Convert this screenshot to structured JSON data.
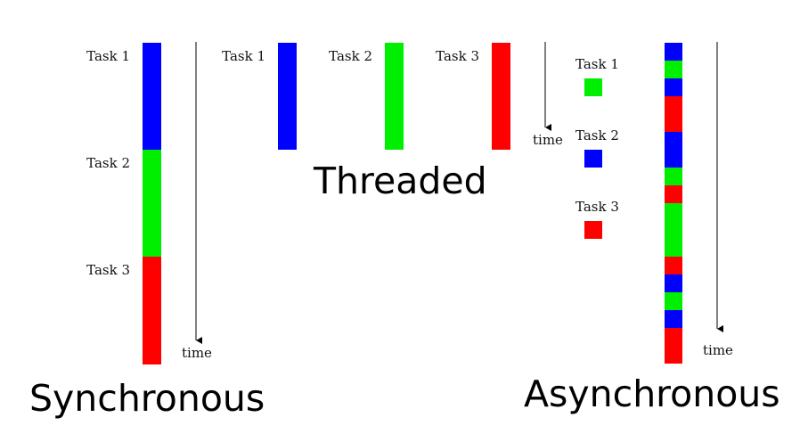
{
  "colors": {
    "blue": "#0000ff",
    "green": "#00ee00",
    "red": "#ff0000",
    "axis": "#000000"
  },
  "synchronous": {
    "title": "Synchronous",
    "time_label": "time",
    "tasks": [
      {
        "label": "Task 1",
        "color": "blue"
      },
      {
        "label": "Task 2",
        "color": "green"
      },
      {
        "label": "Task 3",
        "color": "red"
      }
    ]
  },
  "threaded": {
    "title": "Threaded",
    "time_label": "time",
    "tasks": [
      {
        "label": "Task 1",
        "color": "blue"
      },
      {
        "label": "Task 2",
        "color": "green"
      },
      {
        "label": "Task 3",
        "color": "red"
      }
    ]
  },
  "asynchronous": {
    "title": "Asynchronous",
    "time_label": "time",
    "legend": [
      {
        "label": "Task 1",
        "color": "green"
      },
      {
        "label": "Task 2",
        "color": "blue"
      },
      {
        "label": "Task 3",
        "color": "red"
      }
    ],
    "segments": [
      {
        "color": "blue",
        "duration": 1
      },
      {
        "color": "green",
        "duration": 1
      },
      {
        "color": "blue",
        "duration": 1
      },
      {
        "color": "red",
        "duration": 2
      },
      {
        "color": "blue",
        "duration": 2
      },
      {
        "color": "green",
        "duration": 1
      },
      {
        "color": "red",
        "duration": 1
      },
      {
        "color": "green",
        "duration": 3
      },
      {
        "color": "red",
        "duration": 1
      },
      {
        "color": "blue",
        "duration": 1
      },
      {
        "color": "green",
        "duration": 1
      },
      {
        "color": "blue",
        "duration": 1
      },
      {
        "color": "red",
        "duration": 2
      }
    ]
  }
}
